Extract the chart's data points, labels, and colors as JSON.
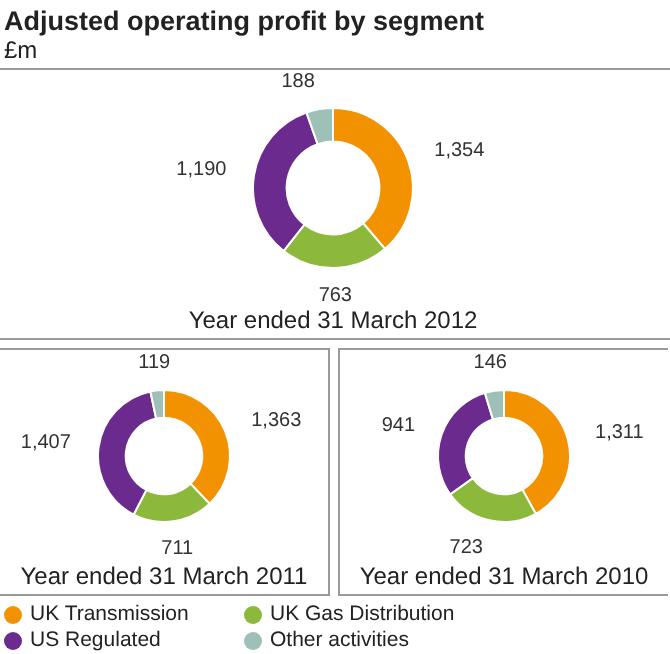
{
  "chart_data": [
    {
      "type": "donut",
      "title": "Adjusted operating profit by segment",
      "subtitle": "£m",
      "xlabel": "Year ended 31 March 2012",
      "categories": [
        "UK Transmission",
        "UK Gas Distribution",
        "US Regulated",
        "Other activities"
      ],
      "values": [
        1354,
        763,
        1190,
        188
      ],
      "value_labels": [
        "1,354",
        "763",
        "1,190",
        "188"
      ],
      "colors": [
        "#f39200",
        "#8cb83c",
        "#6a2a8e",
        "#9fc0b8"
      ],
      "legend": "bottom"
    },
    {
      "type": "donut",
      "xlabel": "Year ended 31 March 2011",
      "categories": [
        null,
        null,
        null,
        null
      ],
      "values": [
        1363,
        711,
        1407,
        119
      ],
      "value_labels": [
        "1,363",
        "711",
        "1,407",
        "119"
      ],
      "colors": [
        "#f39200",
        "#8cb83c",
        "#6a2a8e",
        "#9fc0b8"
      ]
    },
    {
      "type": "donut",
      "xlabel": "Year ended 31 March 2010",
      "categories": [
        null,
        null,
        null,
        null
      ],
      "values": [
        1311,
        723,
        941,
        146
      ],
      "value_labels": [
        "1,311",
        "723",
        "941",
        "146"
      ],
      "colors": [
        "#f39200",
        "#8cb83c",
        "#6a2a8e",
        "#9fc0b8"
      ]
    }
  ]
}
